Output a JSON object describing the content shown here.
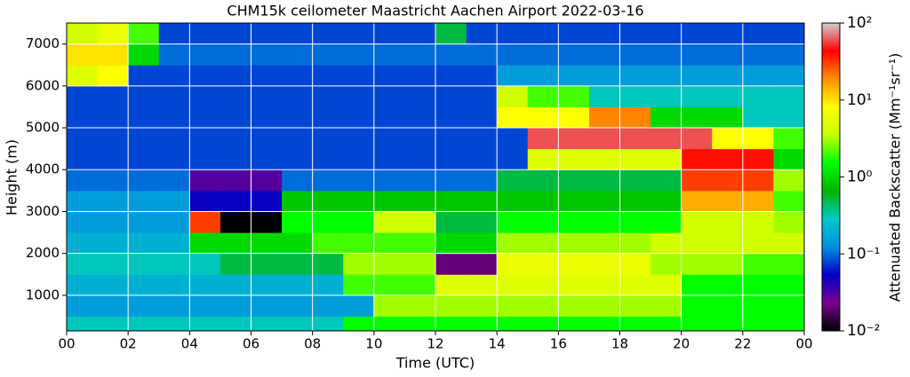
{
  "chart_data": {
    "type": "heatmap",
    "title": "CHM15k ceilometer Maastricht Aachen Airport 2022-03-16",
    "x_label": "Time (UTC)",
    "y_label": "Height (m)",
    "colorbar_label": "Attenuated Backscatter (Mm⁻¹sr⁻¹)",
    "xlim": [
      0,
      24
    ],
    "ylim": [
      150,
      7500
    ],
    "xticks": [
      {
        "value": 0,
        "label": "00"
      },
      {
        "value": 2,
        "label": "02"
      },
      {
        "value": 4,
        "label": "04"
      },
      {
        "value": 6,
        "label": "06"
      },
      {
        "value": 8,
        "label": "08"
      },
      10,
      12,
      14,
      16,
      18,
      20,
      22,
      {
        "value": 24,
        "label": "00"
      }
    ],
    "yticks": [
      1000,
      2000,
      3000,
      4000,
      5000,
      6000,
      7000
    ],
    "clim": [
      0.01,
      100
    ],
    "log_color": true,
    "cticks": [
      {
        "value": 0.01,
        "label": "10⁻²"
      },
      {
        "value": 0.1,
        "label": "10⁻¹"
      },
      {
        "value": 1,
        "label": "10⁰"
      },
      {
        "value": 10,
        "label": "10¹"
      },
      {
        "value": 100,
        "label": "10²"
      }
    ],
    "colormap": [
      "#000000",
      "#7a0090",
      "#0000c8",
      "#0090e0",
      "#00c8c8",
      "#00b400",
      "#00ff00",
      "#c8ff00",
      "#ffff00",
      "#ff9000",
      "#ff0000",
      "#d0d0d0"
    ],
    "grid": true,
    "grid_color": "#ffffff",
    "x_bins": [
      0,
      1,
      2,
      3,
      4,
      5,
      6,
      7,
      8,
      9,
      10,
      11,
      12,
      13,
      14,
      15,
      16,
      17,
      18,
      19,
      20,
      21,
      22,
      23,
      24
    ],
    "y_bins": [
      150,
      500,
      1000,
      1500,
      2000,
      2500,
      3000,
      3500,
      4000,
      4500,
      5000,
      5500,
      6000,
      6500,
      7000,
      7500
    ],
    "z": [
      [
        0.3,
        0.3,
        0.3,
        0.3,
        0.3,
        0.3,
        0.3,
        0.3,
        0.3,
        1.5,
        1.5,
        1.5,
        1.5,
        1.5,
        1.5,
        1.5,
        1.5,
        1.5,
        1.5,
        1.5,
        1.5,
        1.5,
        1.5,
        1.5
      ],
      [
        0.15,
        0.15,
        0.15,
        0.15,
        0.15,
        0.15,
        0.15,
        0.15,
        0.15,
        0.15,
        3,
        3,
        3,
        3,
        3,
        3,
        3,
        3,
        3,
        3,
        1.5,
        1.5,
        1.5,
        1.5
      ],
      [
        0.2,
        0.2,
        0.2,
        0.2,
        0.2,
        0.2,
        0.2,
        0.2,
        0.2,
        2,
        2,
        2,
        5,
        5,
        5,
        5,
        5,
        5,
        5,
        5,
        1.5,
        1.5,
        1.5,
        1.5
      ],
      [
        0.3,
        0.3,
        0.3,
        0.3,
        0.3,
        0.5,
        0.5,
        0.5,
        0.5,
        3,
        3,
        3,
        0.02,
        0.02,
        6,
        6,
        6,
        6,
        6,
        3,
        3,
        3,
        2,
        2
      ],
      [
        0.2,
        0.2,
        0.2,
        0.2,
        1,
        1,
        1,
        1,
        2,
        2,
        2,
        2,
        1,
        1,
        3,
        3,
        3,
        3,
        3,
        4,
        4,
        4,
        4,
        4
      ],
      [
        0.15,
        0.15,
        0.15,
        0.15,
        30,
        0.01,
        0.01,
        1.5,
        1.5,
        1.5,
        4,
        4,
        0.5,
        0.5,
        1.5,
        1.5,
        1.5,
        1.5,
        1.5,
        1.5,
        4,
        4,
        4,
        3
      ],
      [
        0.15,
        0.15,
        0.15,
        0.15,
        0.05,
        0.05,
        0.05,
        0.8,
        0.8,
        0.8,
        0.8,
        0.8,
        0.8,
        0.8,
        0.8,
        0.8,
        0.8,
        0.8,
        0.8,
        0.8,
        15,
        15,
        15,
        2
      ],
      [
        0.1,
        0.1,
        0.1,
        0.1,
        0.03,
        0.03,
        0.03,
        0.1,
        0.1,
        0.1,
        0.1,
        0.1,
        0.1,
        0.1,
        0.5,
        0.5,
        0.5,
        0.5,
        0.5,
        0.5,
        30,
        30,
        30,
        3
      ],
      [
        0.08,
        0.08,
        0.08,
        0.08,
        0.08,
        0.08,
        0.08,
        0.08,
        0.08,
        0.08,
        0.08,
        0.08,
        0.08,
        0.08,
        0.08,
        5,
        5,
        5,
        5,
        5,
        40,
        40,
        40,
        1
      ],
      [
        0.08,
        0.08,
        0.08,
        0.08,
        0.08,
        0.08,
        0.08,
        0.08,
        0.08,
        0.08,
        0.08,
        0.08,
        0.08,
        0.08,
        0.08,
        60,
        60,
        60,
        60,
        60,
        60,
        8,
        8,
        2
      ],
      [
        0.08,
        0.08,
        0.08,
        0.08,
        0.08,
        0.08,
        0.08,
        0.08,
        0.08,
        0.08,
        0.08,
        0.08,
        0.08,
        0.08,
        8,
        8,
        8,
        20,
        20,
        1,
        1,
        1,
        0.3,
        0.3
      ],
      [
        0.08,
        0.08,
        0.08,
        0.08,
        0.08,
        0.08,
        0.08,
        0.08,
        0.08,
        0.08,
        0.08,
        0.08,
        0.08,
        0.08,
        4,
        2,
        2,
        0.3,
        0.3,
        0.3,
        0.3,
        0.3,
        0.3,
        0.3
      ],
      [
        5,
        8,
        0.08,
        0.08,
        0.08,
        0.08,
        0.08,
        0.08,
        0.08,
        0.08,
        0.08,
        0.08,
        0.08,
        0.08,
        0.15,
        0.15,
        0.15,
        0.15,
        0.15,
        0.15,
        0.15,
        0.15,
        0.15,
        0.15
      ],
      [
        10,
        10,
        1,
        0.1,
        0.1,
        0.1,
        0.1,
        0.1,
        0.1,
        0.1,
        0.1,
        0.1,
        0.1,
        0.1,
        0.1,
        0.1,
        0.1,
        0.1,
        0.1,
        0.1,
        0.1,
        0.1,
        0.1,
        0.1
      ],
      [
        4,
        6,
        2,
        0.08,
        0.08,
        0.08,
        0.08,
        0.08,
        0.08,
        0.08,
        0.08,
        0.08,
        0.5,
        0.08,
        0.08,
        0.08,
        0.08,
        0.08,
        0.08,
        0.08,
        0.08,
        0.08,
        0.08,
        0.08
      ]
    ]
  }
}
